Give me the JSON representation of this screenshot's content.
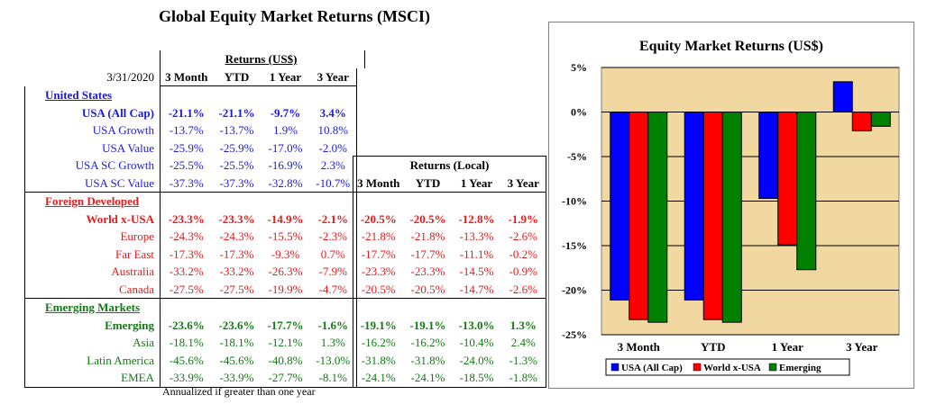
{
  "page": {
    "title": "Global Equity Market Returns (MSCI)",
    "footnote": "Annualized if greater than one year"
  },
  "usd_table": {
    "date": "3/31/2020",
    "group_header": "Returns (US$)",
    "columns": [
      "3 Month",
      "YTD",
      "1 Year",
      "3 Year"
    ],
    "sections": [
      {
        "name": "United States",
        "color": "#1c1cd6",
        "rows": [
          {
            "label": "USA (All Cap)",
            "bold": true,
            "values": [
              "-21.1%",
              "-21.1%",
              "-9.7%",
              "3.4%"
            ]
          },
          {
            "label": "USA Growth",
            "bold": false,
            "values": [
              "-13.7%",
              "-13.7%",
              "1.9%",
              "10.8%"
            ]
          },
          {
            "label": "USA Value",
            "bold": false,
            "values": [
              "-25.9%",
              "-25.9%",
              "-17.0%",
              "-2.0%"
            ]
          },
          {
            "label": "USA SC Growth",
            "bold": false,
            "values": [
              "-25.5%",
              "-25.5%",
              "-16.9%",
              "2.3%"
            ]
          },
          {
            "label": "USA SC Value",
            "bold": false,
            "values": [
              "-37.3%",
              "-37.3%",
              "-32.8%",
              "-10.7%"
            ]
          }
        ]
      },
      {
        "name": "Foreign Developed",
        "color": "#e01d1d",
        "rows": [
          {
            "label": "World x-USA",
            "bold": true,
            "values": [
              "-23.3%",
              "-23.3%",
              "-14.9%",
              "-2.1%"
            ]
          },
          {
            "label": "Europe",
            "bold": false,
            "values": [
              "-24.3%",
              "-24.3%",
              "-15.5%",
              "-2.3%"
            ]
          },
          {
            "label": "Far East",
            "bold": false,
            "values": [
              "-17.3%",
              "-17.3%",
              "-9.3%",
              "0.7%"
            ]
          },
          {
            "label": "Australia",
            "bold": false,
            "values": [
              "-33.2%",
              "-33.2%",
              "-26.3%",
              "-7.9%"
            ]
          },
          {
            "label": "Canada",
            "bold": false,
            "values": [
              "-27.5%",
              "-27.5%",
              "-19.9%",
              "-4.7%"
            ]
          }
        ]
      },
      {
        "name": "Emerging Markets",
        "color": "#137a13",
        "rows": [
          {
            "label": "Emerging",
            "bold": true,
            "values": [
              "-23.6%",
              "-23.6%",
              "-17.7%",
              "-1.6%"
            ]
          },
          {
            "label": "Asia",
            "bold": false,
            "values": [
              "-18.1%",
              "-18.1%",
              "-12.1%",
              "1.3%"
            ]
          },
          {
            "label": "Latin America",
            "bold": false,
            "values": [
              "-45.6%",
              "-45.6%",
              "-40.8%",
              "-13.0%"
            ]
          },
          {
            "label": "EMEA",
            "bold": false,
            "values": [
              "-33.9%",
              "-33.9%",
              "-27.7%",
              "-8.1%"
            ]
          }
        ]
      }
    ]
  },
  "local_table": {
    "group_header": "Returns (Local)",
    "columns": [
      "3 Month",
      "YTD",
      "1 Year",
      "3 Year"
    ],
    "sections": [
      {
        "color": "#e01d1d",
        "rows": [
          {
            "bold": true,
            "values": [
              "-20.5%",
              "-20.5%",
              "-12.8%",
              "-1.9%"
            ]
          },
          {
            "bold": false,
            "values": [
              "-21.8%",
              "-21.8%",
              "-13.3%",
              "-2.6%"
            ]
          },
          {
            "bold": false,
            "values": [
              "-17.7%",
              "-17.7%",
              "-11.1%",
              "-0.2%"
            ]
          },
          {
            "bold": false,
            "values": [
              "-23.3%",
              "-23.3%",
              "-14.5%",
              "-0.9%"
            ]
          },
          {
            "bold": false,
            "values": [
              "-20.5%",
              "-20.5%",
              "-14.7%",
              "-2.6%"
            ]
          }
        ]
      },
      {
        "color": "#137a13",
        "rows": [
          {
            "bold": true,
            "values": [
              "-19.1%",
              "-19.1%",
              "-13.0%",
              "1.3%"
            ]
          },
          {
            "bold": false,
            "values": [
              "-16.2%",
              "-16.2%",
              "-10.4%",
              "2.4%"
            ]
          },
          {
            "bold": false,
            "values": [
              "-31.8%",
              "-31.8%",
              "-24.0%",
              "-1.3%"
            ]
          },
          {
            "bold": false,
            "values": [
              "-24.1%",
              "-24.1%",
              "-18.5%",
              "-1.8%"
            ]
          }
        ]
      }
    ]
  },
  "chart_data": {
    "type": "bar",
    "title": "Equity Market Returns (US$)",
    "categories": [
      "3 Month",
      "YTD",
      "1 Year",
      "3 Year"
    ],
    "series": [
      {
        "name": "USA (All Cap)",
        "color": "#0000ff",
        "values": [
          -21.1,
          -21.1,
          -9.7,
          3.4
        ]
      },
      {
        "name": "World x-USA",
        "color": "#ff0000",
        "values": [
          -23.3,
          -23.3,
          -14.9,
          -2.1
        ]
      },
      {
        "name": "Emerging",
        "color": "#008000",
        "values": [
          -23.6,
          -23.6,
          -17.7,
          -1.6
        ]
      }
    ],
    "ylim": [
      -25,
      5
    ],
    "yticks": [
      5,
      0,
      -5,
      -10,
      -15,
      -20,
      -25
    ],
    "ytick_labels": [
      "5%",
      "0%",
      "-5%",
      "-10%",
      "-15%",
      "-20%",
      "-25%"
    ],
    "plot_background": "#f0d8a0",
    "grid": true,
    "legend_position": "bottom",
    "xlabel": "",
    "ylabel": ""
  }
}
